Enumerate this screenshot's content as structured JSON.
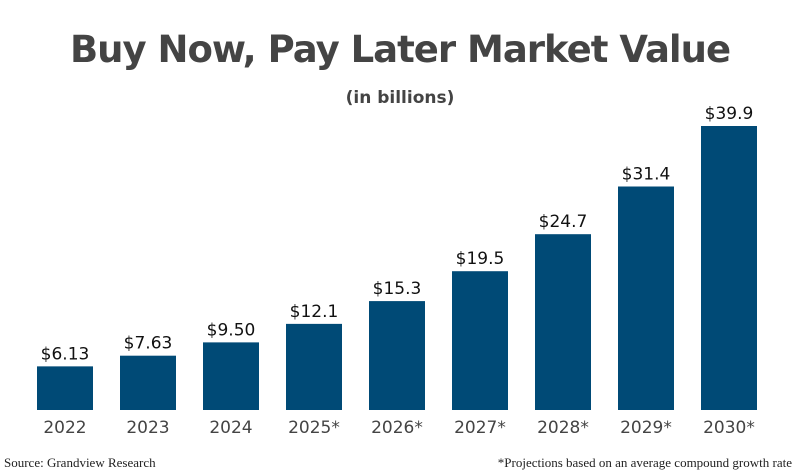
{
  "chart_data": {
    "type": "bar",
    "title": "Buy Now, Pay Later Market Value",
    "subtitle": "(in billions)",
    "categories": [
      "2022",
      "2023",
      "2024",
      "2025*",
      "2026*",
      "2027*",
      "2028*",
      "2029*",
      "2030*"
    ],
    "values": [
      6.13,
      7.63,
      9.5,
      12.1,
      15.3,
      19.5,
      24.7,
      31.4,
      39.9
    ],
    "data_labels": [
      "$6.13",
      "$7.63",
      "$9.50",
      "$12.1",
      "$15.3",
      "$19.5",
      "$24.7",
      "$31.4",
      "$39.9"
    ],
    "ylim": [
      0,
      40
    ],
    "grid": false,
    "bar_color": "#004a76"
  },
  "source": "Source: Grandview Research",
  "note": "*Projections based on an average compound growth rate"
}
